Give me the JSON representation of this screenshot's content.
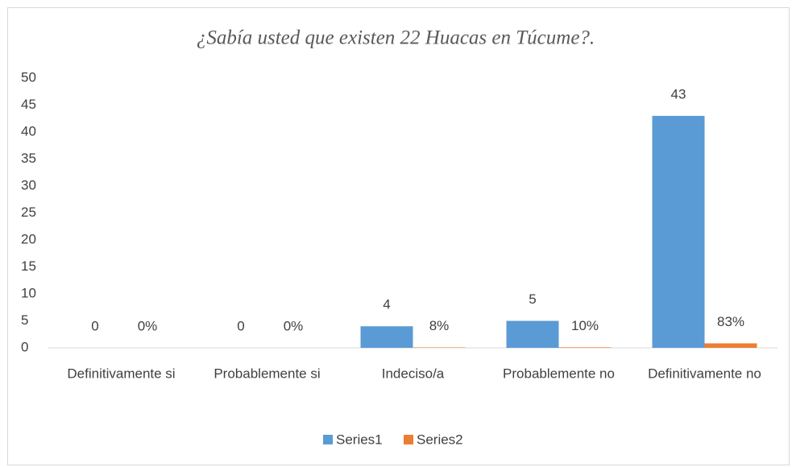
{
  "chart_data": {
    "type": "bar",
    "title": "¿Sabía usted que existen 22 Huacas en Túcume?.",
    "categories": [
      "Definitivamente si",
      "Probablemente si",
      "Indeciso/a",
      "Probablemente no",
      "Definitivamente no"
    ],
    "series": [
      {
        "name": "Series1",
        "color": "#5b9bd5",
        "values": [
          0,
          0,
          4,
          5,
          43
        ]
      },
      {
        "name": "Series2",
        "color": "#ed7d31",
        "values": [
          0,
          0,
          0.08,
          0.1,
          0.83
        ],
        "value_labels": [
          "0%",
          "0%",
          "8%",
          "10%",
          "83%"
        ]
      }
    ],
    "ylim": [
      0,
      50
    ],
    "yticks": [
      0,
      5,
      10,
      15,
      20,
      25,
      30,
      35,
      40,
      45,
      50
    ],
    "grid": false,
    "legend": "bottom"
  }
}
